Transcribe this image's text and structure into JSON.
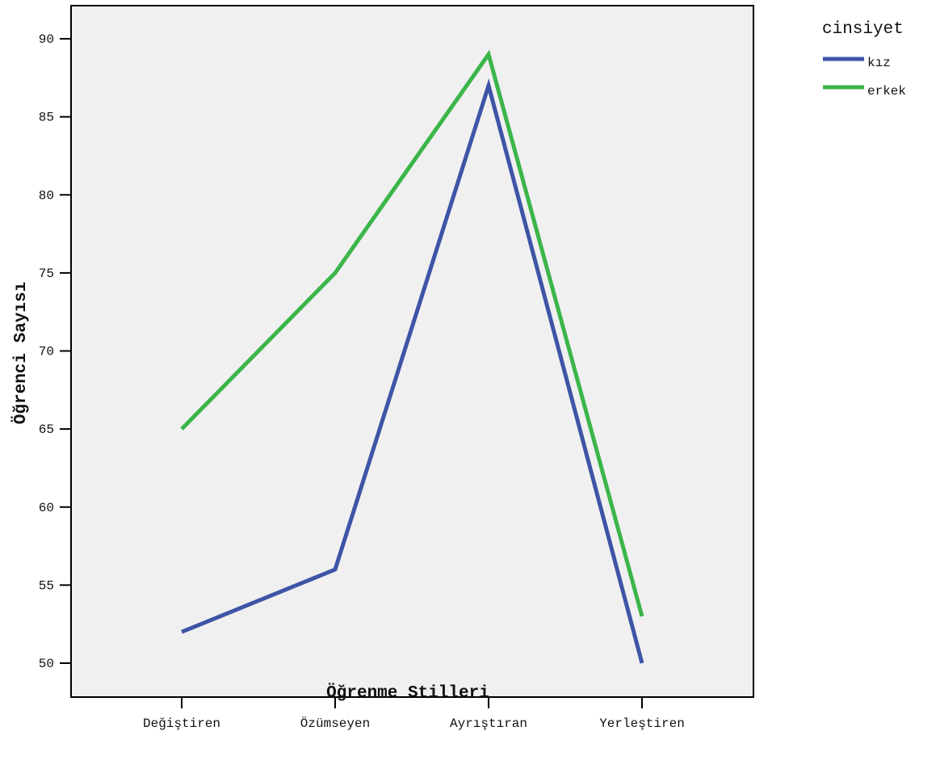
{
  "chart_data": {
    "type": "line",
    "categories": [
      "Değiştiren",
      "Özümseyen",
      "Ayrıştıran",
      "Yerleştiren"
    ],
    "series": [
      {
        "name": "kız",
        "values": [
          52,
          56,
          87,
          50
        ],
        "color": "#3f54a6"
      },
      {
        "name": "erkek",
        "values": [
          65,
          75,
          89,
          53
        ],
        "color": "#3cb54a"
      }
    ],
    "xlabel": "Öğrenme Stilleri",
    "ylabel": "Öğrenci Sayısı",
    "ylim": [
      48,
      92
    ],
    "yticks": [
      50,
      55,
      60,
      65,
      70,
      75,
      80,
      85,
      90
    ],
    "legend_title": "cinsiyet",
    "legend_position": "top-right outside",
    "plot_background": "#f0f0f0",
    "grid": false
  }
}
